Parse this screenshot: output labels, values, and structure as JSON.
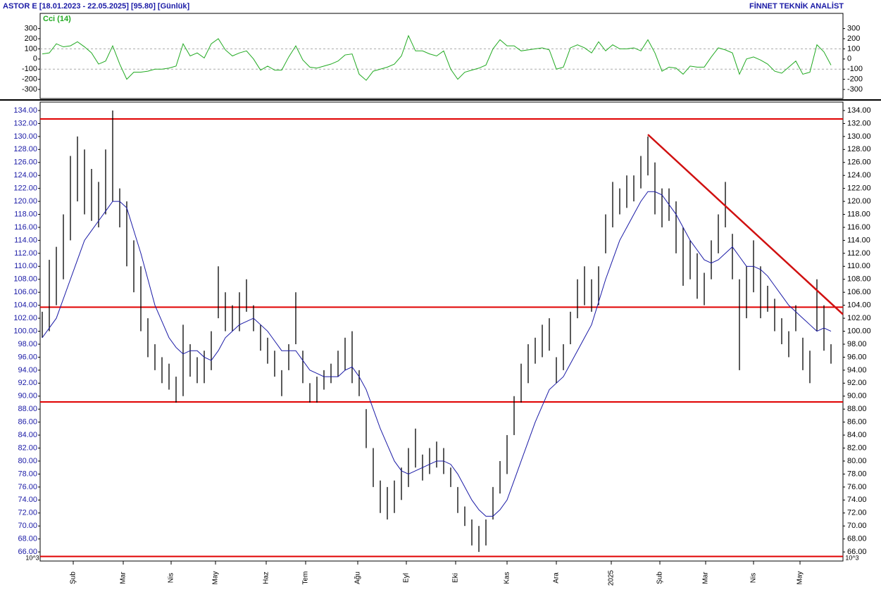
{
  "header": {
    "title": "ASTOR E  [18.01.2023 - 22.05.2025]  [95.80]  [Günlük]",
    "brand": "FİNNET TEKNİK ANALİST",
    "unit": "10^3"
  },
  "chart_data": [
    {
      "type": "line",
      "title": "Cci (14)",
      "color": "#22aa22",
      "ylim": [
        -390,
        450
      ],
      "yticks": [
        300,
        200,
        100,
        0,
        -100,
        -200,
        -300
      ],
      "grid_lines": [
        100,
        -100
      ],
      "xlim": [
        -0.3,
        113.7
      ],
      "values": [
        50,
        60,
        150,
        120,
        130,
        170,
        120,
        60,
        -50,
        -20,
        130,
        -50,
        -200,
        -130,
        -130,
        -120,
        -100,
        -100,
        -90,
        -70,
        150,
        30,
        60,
        10,
        150,
        200,
        90,
        30,
        60,
        80,
        0,
        -110,
        -70,
        -110,
        -110,
        20,
        130,
        -10,
        -80,
        -90,
        -70,
        -50,
        -20,
        40,
        50,
        -150,
        -210,
        -120,
        -100,
        -80,
        -50,
        30,
        230,
        80,
        80,
        50,
        30,
        80,
        -100,
        -200,
        -130,
        -110,
        -90,
        -60,
        100,
        190,
        130,
        130,
        80,
        90,
        100,
        110,
        90,
        -100,
        -80,
        110,
        140,
        110,
        60,
        170,
        80,
        140,
        100,
        100,
        110,
        80,
        190,
        60,
        -120,
        -80,
        -90,
        -150,
        -70,
        -80,
        -80,
        20,
        110,
        90,
        60,
        -150,
        0,
        20,
        -10,
        -50,
        -120,
        -140,
        -80,
        -20,
        -150,
        -130,
        140,
        70,
        -60
      ]
    },
    {
      "type": "ohlc",
      "color": "#000000",
      "ylim": [
        64.6,
        135.3
      ],
      "xlim": [
        -0.3,
        113.7
      ],
      "yticks": [
        {
          "value": 134,
          "label": "134.00"
        },
        {
          "value": 132,
          "label": "132.00"
        },
        {
          "value": 130,
          "label": "130.00"
        },
        {
          "value": 128,
          "label": "128.00"
        },
        {
          "value": 126,
          "label": "126.00"
        },
        {
          "value": 124,
          "label": "124.00"
        },
        {
          "value": 122,
          "label": "122.00"
        },
        {
          "value": 120,
          "label": "120.00"
        },
        {
          "value": 118,
          "label": "118.00"
        },
        {
          "value": 116,
          "label": "116.00"
        },
        {
          "value": 114,
          "label": "114.00"
        },
        {
          "value": 112,
          "label": "112.00"
        },
        {
          "value": 110,
          "label": "110.00"
        },
        {
          "value": 108,
          "label": "108.00"
        },
        {
          "value": 106,
          "label": "106.00"
        },
        {
          "value": 104,
          "label": "104.00"
        },
        {
          "value": 102,
          "label": "102.00"
        },
        {
          "value": 100,
          "label": "100.00"
        },
        {
          "value": 98,
          "label": "98.00"
        },
        {
          "value": 96,
          "label": "96.00"
        },
        {
          "value": 94,
          "label": "94.00"
        },
        {
          "value": 92,
          "label": "92.00"
        },
        {
          "value": 90,
          "label": "90.00"
        },
        {
          "value": 88,
          "label": "88.00"
        },
        {
          "value": 86,
          "label": "86.00"
        },
        {
          "value": 84,
          "label": "84.00"
        },
        {
          "value": 82,
          "label": "82.00"
        },
        {
          "value": 80,
          "label": "80.00"
        },
        {
          "value": 78,
          "label": "78.00"
        },
        {
          "value": 76,
          "label": "76.00"
        },
        {
          "value": 74,
          "label": "74.00"
        },
        {
          "value": 72,
          "label": "72.00"
        },
        {
          "value": 70,
          "label": "70.00"
        },
        {
          "value": 68,
          "label": "68.00"
        },
        {
          "value": 66,
          "label": "66.00"
        }
      ],
      "xticks": [
        {
          "value": 4.4,
          "label": "Şub"
        },
        {
          "value": 11.5,
          "label": "Mar"
        },
        {
          "value": 18.3,
          "label": "Nis"
        },
        {
          "value": 24.6,
          "label": "May"
        },
        {
          "value": 31.8,
          "label": "Haz"
        },
        {
          "value": 37.4,
          "label": "Tem"
        },
        {
          "value": 44.8,
          "label": "Ağu"
        },
        {
          "value": 51.7,
          "label": "Eyl"
        },
        {
          "value": 58.7,
          "label": "Eki"
        },
        {
          "value": 66,
          "label": "Kas"
        },
        {
          "value": 73,
          "label": "Ara"
        },
        {
          "value": 80.8,
          "label": "2025"
        },
        {
          "value": 87.7,
          "label": "Şub"
        },
        {
          "value": 94.2,
          "label": "Mar"
        },
        {
          "value": 101,
          "label": "Nis"
        },
        {
          "value": 107.6,
          "label": "May"
        }
      ],
      "high": [
        103,
        111,
        113,
        118,
        127,
        130,
        128,
        125,
        123,
        128,
        134,
        122,
        120,
        114,
        110,
        102,
        98,
        96,
        95,
        93,
        101,
        98,
        96,
        97,
        100,
        110,
        106,
        104,
        106,
        108,
        104,
        101,
        99,
        97,
        94,
        98,
        106,
        97,
        92,
        93,
        94,
        95,
        97,
        99,
        100,
        94,
        88,
        82,
        77,
        76,
        77,
        79,
        82,
        85,
        81,
        82,
        83,
        82,
        79,
        76,
        73,
        71,
        70,
        71,
        76,
        80,
        84,
        90,
        95,
        98,
        99,
        101,
        102,
        96,
        98,
        103,
        108,
        110,
        108,
        110,
        118,
        123,
        122,
        124,
        124,
        127,
        130,
        126,
        122,
        122,
        120,
        116,
        114,
        112,
        109,
        114,
        118,
        123,
        115,
        108,
        110,
        114,
        110,
        107,
        105,
        102,
        100,
        104,
        99,
        97,
        108,
        104,
        98
      ],
      "low": [
        99,
        100,
        104,
        108,
        114,
        120,
        118,
        117,
        116,
        118,
        120,
        116,
        110,
        106,
        100,
        96,
        94,
        92,
        91,
        89,
        90,
        93,
        92,
        92,
        94,
        102,
        100,
        100,
        100,
        103,
        100,
        97,
        95,
        93,
        90,
        94,
        98,
        92,
        89,
        89,
        91,
        92,
        93,
        94,
        92,
        90,
        82,
        76,
        72,
        71,
        72,
        74,
        76,
        79,
        77,
        78,
        79,
        78,
        76,
        72,
        70,
        67,
        66,
        67,
        71,
        75,
        78,
        84,
        89,
        92,
        95,
        96,
        97,
        92,
        94,
        98,
        102,
        104,
        103,
        104,
        112,
        116,
        118,
        119,
        120,
        122,
        124,
        118,
        116,
        117,
        112,
        107,
        108,
        105,
        104,
        108,
        112,
        116,
        108,
        94,
        102,
        106,
        102,
        103,
        100,
        98,
        96,
        100,
        94,
        92,
        100,
        97,
        95
      ],
      "ma": {
        "color": "#1a1aa6",
        "values": [
          99,
          100.5,
          102,
          105,
          108,
          111,
          114,
          115.5,
          117,
          118.5,
          120,
          120,
          119,
          115.5,
          112,
          108,
          104,
          101.5,
          99,
          97.5,
          96.5,
          97,
          97,
          96,
          95.5,
          97,
          99,
          100,
          101,
          101.5,
          102,
          101,
          100,
          98.5,
          97,
          97,
          97,
          95.5,
          94,
          93.5,
          93,
          93,
          93,
          94,
          94.5,
          93,
          91,
          88,
          85,
          82.5,
          80,
          78.5,
          78,
          78.5,
          79,
          79.5,
          80,
          80,
          79.5,
          78,
          76,
          74,
          72.5,
          71.5,
          71.5,
          72.5,
          74,
          77,
          80,
          83,
          86,
          88.5,
          91,
          92,
          93,
          95,
          97,
          99,
          101,
          104.5,
          108,
          111,
          114,
          116,
          118,
          120,
          121.5,
          121.5,
          121,
          119.5,
          118,
          116,
          114,
          112.5,
          111,
          110.5,
          111,
          112,
          113,
          111.5,
          110,
          110,
          109.5,
          108.5,
          107,
          105.5,
          104,
          103,
          102,
          101,
          100,
          100.5,
          100
        ]
      },
      "hlines": [
        132.7,
        103.7,
        89.1,
        65.3
      ],
      "hline_color": "#e00000",
      "trendline": {
        "x": [
          86,
          113.7
        ],
        "y": [
          130.3,
          102.6
        ],
        "color": "#d01010"
      }
    }
  ]
}
